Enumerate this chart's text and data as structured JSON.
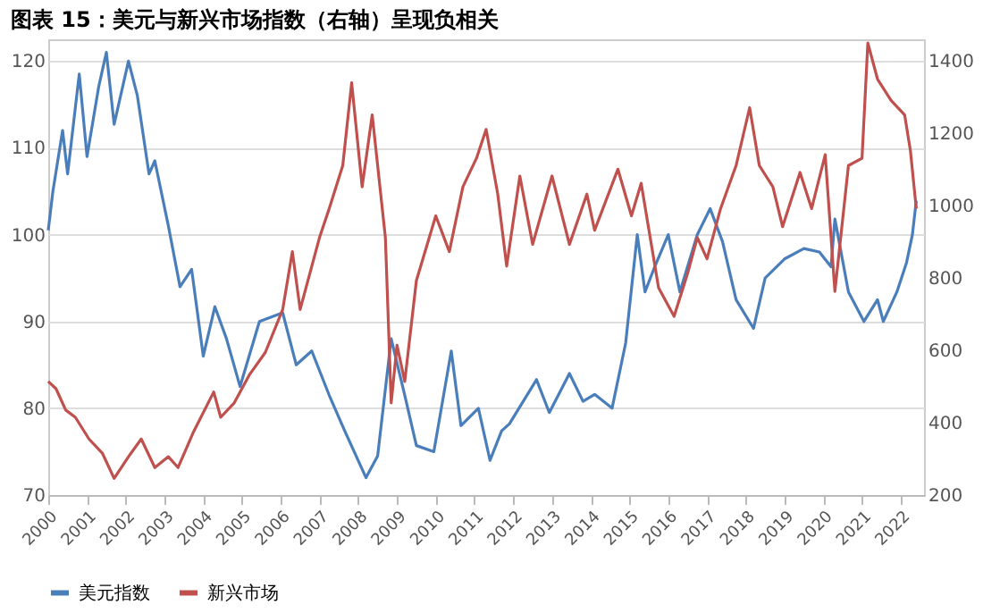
{
  "chart_data": {
    "type": "line",
    "title": "图表 15：美元与新兴市场指数（右轴）呈现负相关",
    "xlim": [
      2000,
      2022.6
    ],
    "xticks": [
      2000,
      2001,
      2002,
      2003,
      2004,
      2005,
      2006,
      2007,
      2008,
      2009,
      2010,
      2011,
      2012,
      2013,
      2014,
      2015,
      2016,
      2017,
      2018,
      2019,
      2020,
      2021,
      2022
    ],
    "ylim": [
      70,
      122.5
    ],
    "yticks": [
      70,
      80,
      90,
      100,
      110,
      120
    ],
    "y2lim": [
      200,
      1460
    ],
    "y2ticks": [
      200,
      400,
      600,
      800,
      1000,
      1200,
      1400
    ],
    "grid": "y",
    "legend": "bottom",
    "series": [
      {
        "name": "美元指数",
        "color": "#4a7ebb",
        "x": [
          2000.0,
          2000.12,
          2000.37,
          2000.5,
          2000.8,
          2001.0,
          2001.3,
          2001.5,
          2001.7,
          2002.07,
          2002.3,
          2002.6,
          2002.75,
          2003.1,
          2003.4,
          2003.7,
          2004.0,
          2004.3,
          2004.6,
          2004.95,
          2005.45,
          2006.05,
          2006.4,
          2006.8,
          2007.25,
          2007.65,
          2008.2,
          2008.5,
          2008.85,
          2009.2,
          2009.5,
          2009.95,
          2010.4,
          2010.65,
          2011.1,
          2011.4,
          2011.7,
          2011.9,
          2012.6,
          2012.93,
          2013.45,
          2013.8,
          2014.1,
          2014.55,
          2014.9,
          2015.2,
          2015.4,
          2015.65,
          2016.0,
          2016.3,
          2016.75,
          2017.08,
          2017.4,
          2017.75,
          2018.2,
          2018.5,
          2019.0,
          2019.5,
          2019.9,
          2020.2,
          2020.3,
          2020.65,
          2021.05,
          2021.4,
          2021.55,
          2021.9,
          2022.15,
          2022.3,
          2022.4
        ],
        "values": [
          100.5,
          105,
          112,
          107,
          118.5,
          109,
          117,
          121,
          112.7,
          120,
          116,
          107,
          108.5,
          101,
          94,
          96,
          86,
          91.7,
          88,
          82.5,
          90,
          91,
          85,
          86.6,
          81.5,
          77.4,
          72,
          74.5,
          88,
          81.5,
          75.7,
          75,
          86.6,
          78,
          80,
          74,
          77.4,
          78.2,
          83.3,
          79.5,
          84,
          80.8,
          81.6,
          80,
          87.5,
          100,
          93.4,
          96.3,
          100,
          93.4,
          100,
          103,
          99.2,
          92.5,
          89.2,
          95,
          97.2,
          98.4,
          98,
          96.3,
          101.8,
          93.4,
          90,
          92.5,
          90,
          93.4,
          96.8,
          100,
          103.9
        ]
      },
      {
        "name": "新兴市场",
        "color": "#c0504d",
        "axis": "y2",
        "x": [
          2000.0,
          2000.2,
          2000.45,
          2000.7,
          2001.05,
          2001.4,
          2001.7,
          2002.07,
          2002.4,
          2002.75,
          2003.1,
          2003.35,
          2003.75,
          2004.27,
          2004.45,
          2004.8,
          2005.2,
          2005.6,
          2006.05,
          2006.3,
          2006.5,
          2007.0,
          2007.25,
          2007.6,
          2007.83,
          2008.1,
          2008.36,
          2008.7,
          2008.85,
          2009.0,
          2009.2,
          2009.5,
          2010.0,
          2010.35,
          2010.7,
          2011.05,
          2011.3,
          2011.6,
          2011.83,
          2012.17,
          2012.5,
          2013.0,
          2013.45,
          2013.9,
          2014.1,
          2014.7,
          2015.05,
          2015.3,
          2015.75,
          2016.15,
          2016.5,
          2016.75,
          2017.0,
          2017.35,
          2017.75,
          2018.1,
          2018.35,
          2018.7,
          2018.95,
          2019.4,
          2019.7,
          2020.05,
          2020.3,
          2020.65,
          2021.0,
          2021.15,
          2021.4,
          2021.75,
          2022.1,
          2022.25,
          2022.4
        ],
        "values": [
          514,
          494,
          435,
          415,
          355,
          315,
          246,
          306,
          355,
          276,
          306,
          276,
          375,
          485,
          415,
          455,
          534,
          594,
          713,
          873,
          713,
          912,
          992,
          1111,
          1340,
          1052,
          1251,
          912,
          455,
          614,
          514,
          793,
          972,
          873,
          1052,
          1131,
          1211,
          1032,
          833,
          1082,
          893,
          1082,
          893,
          1032,
          932,
          1101,
          972,
          1062,
          773,
          694,
          813,
          912,
          853,
          992,
          1111,
          1271,
          1111,
          1052,
          942,
          1092,
          992,
          1141,
          763,
          1111,
          1131,
          1450,
          1350,
          1291,
          1251,
          1151,
          992
        ]
      }
    ]
  }
}
